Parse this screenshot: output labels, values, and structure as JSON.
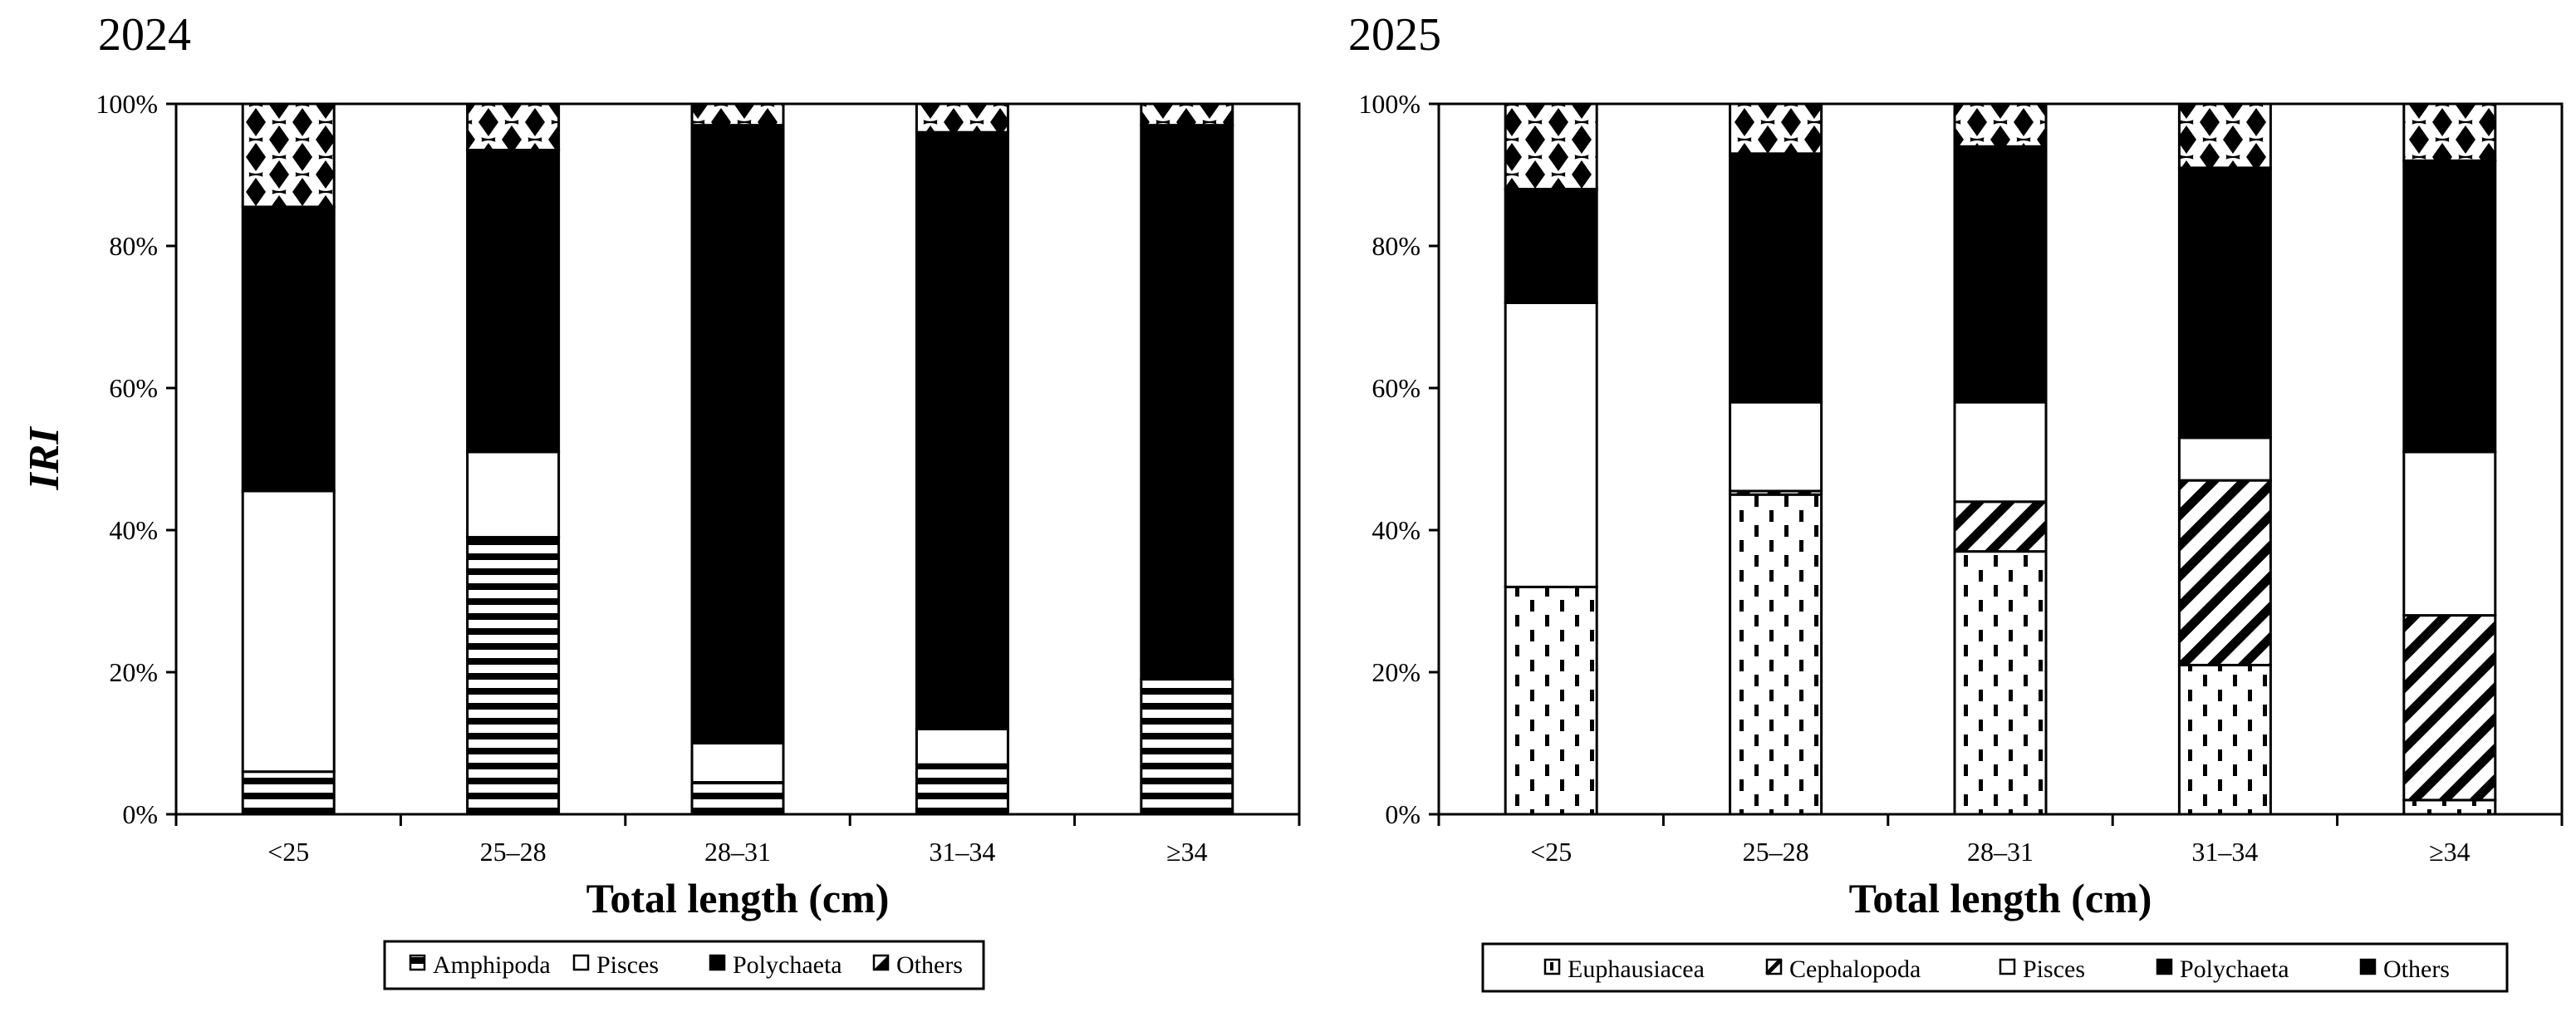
{
  "panels": [
    {
      "year": "2024",
      "legend": [
        "Amphipoda",
        "Pisces",
        "Polychaeta",
        "Others"
      ]
    },
    {
      "year": "2025",
      "legend": [
        "Euphausiacea",
        "Cephalopoda",
        "Pisces",
        "Polychaeta",
        "Others"
      ]
    }
  ],
  "chart_data": [
    {
      "type": "bar",
      "stacked": true,
      "title": "2024",
      "xlabel": "Total length (cm)",
      "ylabel": "IRI",
      "ylim": [
        0,
        100
      ],
      "yticks": [
        "0%",
        "20%",
        "40%",
        "60%",
        "80%",
        "100%"
      ],
      "categories": [
        "<25",
        "25–28",
        "28–31",
        "31–34",
        "≥34"
      ],
      "series": [
        {
          "name": "Amphipoda",
          "pattern": "hlines",
          "values": [
            6,
            39,
            4.5,
            7,
            19
          ]
        },
        {
          "name": "Pisces",
          "pattern": "white",
          "values": [
            39.5,
            12,
            5.5,
            5,
            0
          ]
        },
        {
          "name": "Polychaeta",
          "pattern": "black",
          "values": [
            40,
            42.5,
            87,
            84,
            78
          ]
        },
        {
          "name": "Others",
          "pattern": "diamonds",
          "values": [
            14.5,
            6.5,
            3,
            4,
            3
          ]
        }
      ],
      "legend_position": "bottom"
    },
    {
      "type": "bar",
      "stacked": true,
      "title": "2025",
      "xlabel": "Total length (cm)",
      "ylabel": "",
      "ylim": [
        0,
        100
      ],
      "yticks": [
        "0%",
        "20%",
        "40%",
        "60%",
        "80%",
        "100%"
      ],
      "categories": [
        "<25",
        "25–28",
        "28–31",
        "31–34",
        "≥34"
      ],
      "series": [
        {
          "name": "Euphausiacea",
          "pattern": "dashes",
          "values": [
            32,
            45,
            37,
            21,
            2
          ]
        },
        {
          "name": "Cephalopoda",
          "pattern": "diagonal",
          "values": [
            0,
            0.5,
            7,
            26,
            26
          ]
        },
        {
          "name": "Pisces",
          "pattern": "white",
          "values": [
            40,
            12.5,
            14,
            6,
            23
          ]
        },
        {
          "name": "Polychaeta",
          "pattern": "black",
          "values": [
            16,
            35,
            36,
            38,
            41
          ]
        },
        {
          "name": "Others",
          "pattern": "diamonds",
          "values": [
            12,
            7,
            6,
            9,
            8
          ]
        }
      ],
      "legend_position": "bottom"
    }
  ]
}
